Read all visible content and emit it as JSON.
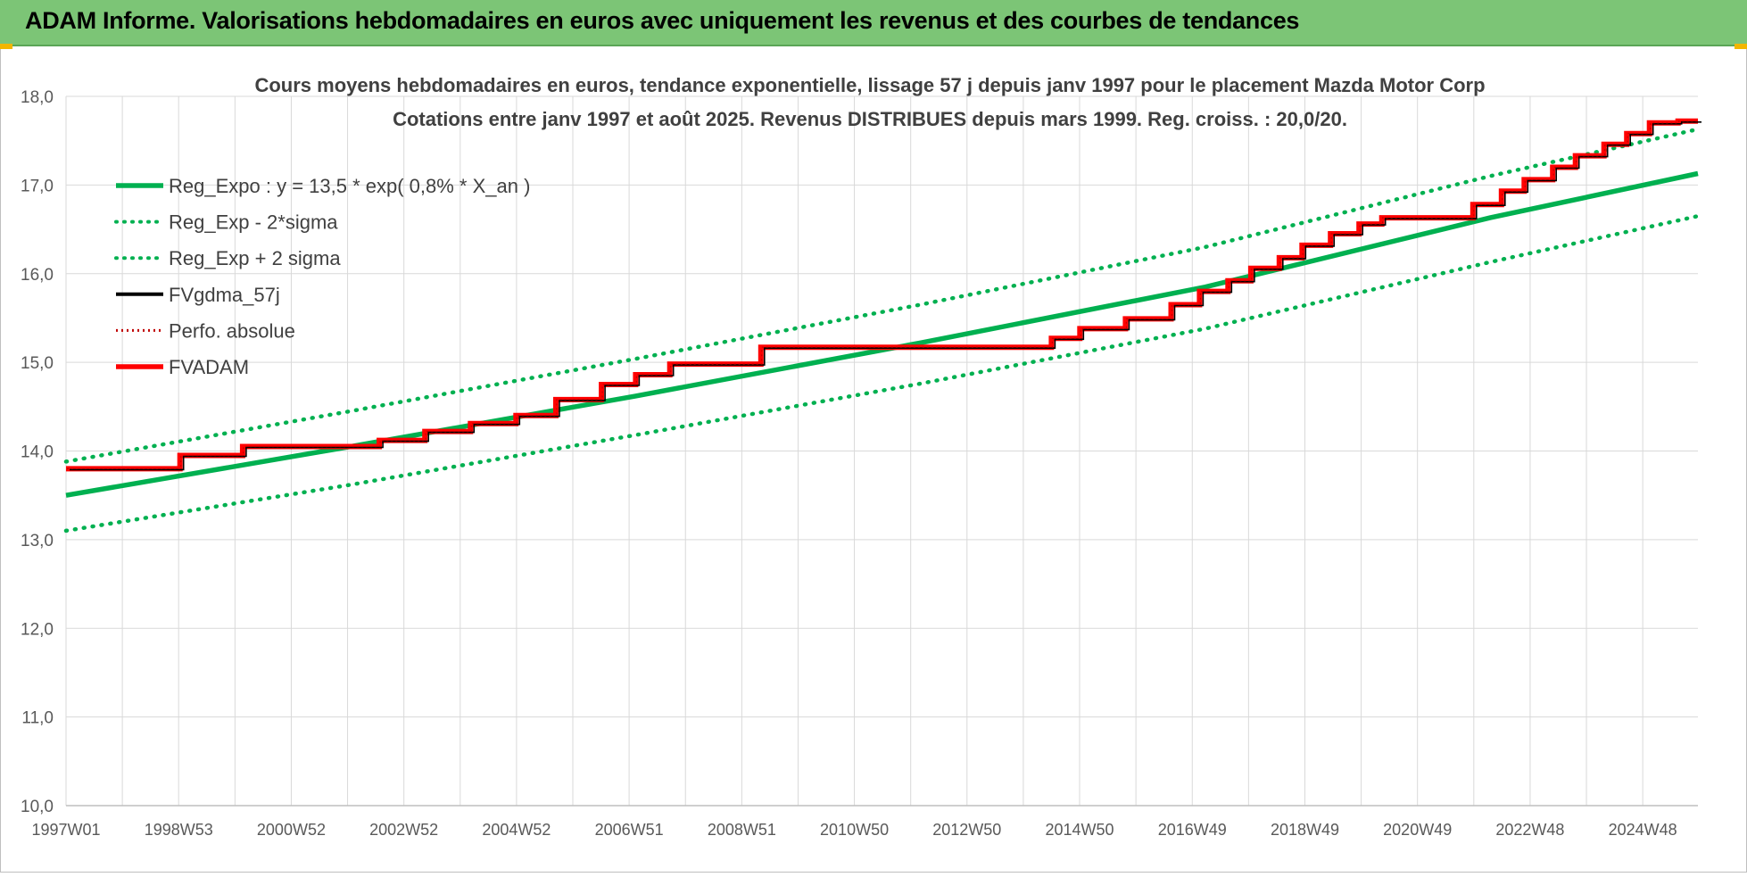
{
  "banner": {
    "title": "ADAM Informe. Valorisations hebdomadaires en euros avec uniquement les revenus et des courbes de tendances"
  },
  "colors": {
    "banner_bg": "#7cc576",
    "reg_green": "#00b050",
    "fvadam_red": "#ff0000",
    "fvgdma_black": "#000000",
    "perfo_red": "#c00000",
    "grid": "#d9d9d9"
  },
  "chart_data": {
    "type": "line",
    "title": "Cours moyens hebdomadaires en euros, tendance exponentielle, lissage 57 j depuis janv 1997 pour le placement Mazda Motor Corp",
    "subtitle": "Cotations entre janv 1997 et août 2025.  Revenus DISTRIBUES depuis mars 1999. Reg. croiss. : 20,0/20.",
    "xlabel": "",
    "ylabel": "",
    "ylim": [
      10.0,
      18.0
    ],
    "xlim": [
      1997.0,
      2025.65
    ],
    "y_ticks": [
      "10,0",
      "11,0",
      "12,0",
      "13,0",
      "14,0",
      "15,0",
      "16,0",
      "17,0",
      "18,0"
    ],
    "x_ticks": [
      "1997W01",
      "1998W53",
      "2000W52",
      "2002W52",
      "2004W52",
      "2006W51",
      "2008W51",
      "2010W50",
      "2012W50",
      "2014W50",
      "2016W49",
      "2018W49",
      "2020W49",
      "2022W48",
      "2024W48"
    ],
    "grid": true,
    "legend_position": "top-left",
    "legend": [
      {
        "label": "Reg_Expo : y = 13,5 * exp( 0,8% *  X_an )",
        "style": "solid-thick",
        "color": "#00b050"
      },
      {
        "label": "Reg_Exp - 2*sigma",
        "style": "dotted",
        "color": "#00b050"
      },
      {
        "label": "Reg_Exp + 2 sigma",
        "style": "dotted",
        "color": "#00b050"
      },
      {
        "label": "FVgdma_57j",
        "style": "solid",
        "color": "#000000"
      },
      {
        "label": "Perfo. absolue",
        "style": "dotted-thin",
        "color": "#c00000"
      },
      {
        "label": "FVADAM",
        "style": "solid-thick",
        "color": "#ff0000"
      }
    ],
    "series": [
      {
        "name": "Reg_Expo : y = 13,5 * exp( 0,8% *  X_an )",
        "x": [
          1997.0,
          2002.0,
          2007.0,
          2012.0,
          2017.0,
          2022.0,
          2025.65
        ],
        "values": [
          13.5,
          14.05,
          14.62,
          15.22,
          15.85,
          16.63,
          17.13
        ]
      },
      {
        "name": "Reg_Exp - 2*sigma",
        "x": [
          1997.0,
          2002.0,
          2007.0,
          2012.0,
          2017.0,
          2022.0,
          2025.65
        ],
        "values": [
          13.1,
          13.62,
          14.18,
          14.76,
          15.38,
          16.13,
          16.65
        ]
      },
      {
        "name": "Reg_Exp + 2 sigma",
        "x": [
          1997.0,
          2002.0,
          2007.0,
          2012.0,
          2017.0,
          2022.0,
          2025.65
        ],
        "values": [
          13.88,
          14.45,
          15.04,
          15.65,
          16.3,
          17.1,
          17.63
        ]
      },
      {
        "name": "FVADAM",
        "step": true,
        "x": [
          1997.0,
          1999.0,
          2000.1,
          2002.5,
          2003.3,
          2004.1,
          2004.9,
          2005.6,
          2006.4,
          2007.0,
          2007.6,
          2009.2,
          2014.3,
          2014.8,
          2015.6,
          2016.4,
          2016.9,
          2017.4,
          2017.8,
          2018.3,
          2018.7,
          2019.2,
          2019.7,
          2020.1,
          2021.7,
          2022.2,
          2022.6,
          2023.1,
          2023.5,
          2024.0,
          2024.4,
          2024.8,
          2025.3,
          2025.65
        ],
        "values": [
          13.8,
          13.95,
          14.05,
          14.12,
          14.22,
          14.31,
          14.4,
          14.58,
          14.75,
          14.86,
          14.98,
          15.17,
          15.27,
          15.38,
          15.49,
          15.65,
          15.8,
          15.92,
          16.06,
          16.18,
          16.32,
          16.45,
          16.56,
          16.63,
          16.78,
          16.93,
          17.06,
          17.2,
          17.33,
          17.46,
          17.58,
          17.7,
          17.72,
          17.72
        ]
      }
    ]
  }
}
